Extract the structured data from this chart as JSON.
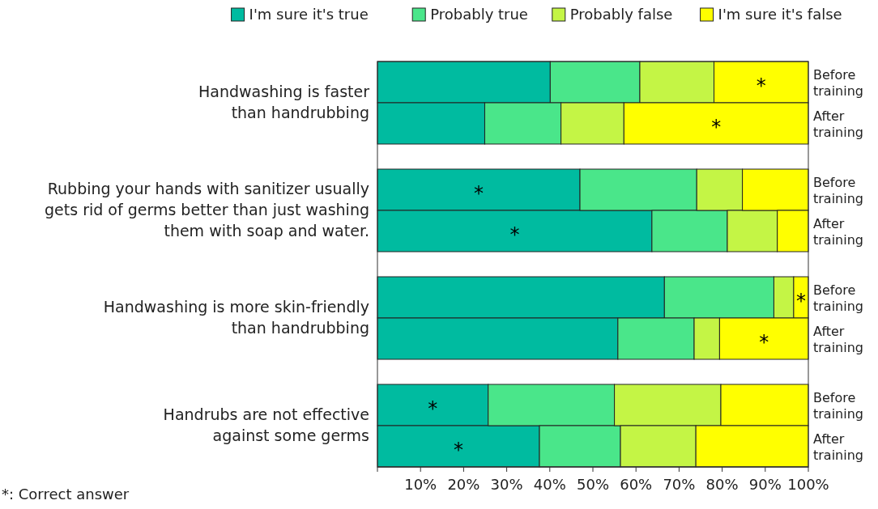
{
  "chart_data": {
    "type": "bar",
    "orientation": "horizontal",
    "stacked": true,
    "legend": "top",
    "grid": false,
    "categories": [
      "Before training",
      "After training",
      "Before training",
      "After training",
      "Before training",
      "After training",
      "Before training",
      "After training"
    ],
    "series": [
      {
        "name": "I'm sure it's true",
        "color": "#00bba0",
        "values": [
          40.1,
          24.9,
          47.0,
          63.7,
          66.6,
          55.8,
          25.7,
          37.6
        ],
        "value_labels": [
          null,
          null,
          "*",
          "*",
          null,
          null,
          "*",
          "*"
        ]
      },
      {
        "name": "Probably true",
        "color": "#4ae68a",
        "values": [
          20.8,
          17.7,
          27.1,
          17.5,
          25.4,
          17.7,
          29.3,
          18.8
        ]
      },
      {
        "name": "Probably false",
        "color": "#c4f545",
        "values": [
          17.2,
          14.6,
          10.6,
          11.6,
          4.6,
          5.9,
          24.7,
          17.5
        ]
      },
      {
        "name": "I'm sure it's false",
        "color": "#ffff00",
        "values": [
          21.9,
          42.8,
          15.3,
          7.2,
          3.4,
          20.6,
          20.3,
          26.1
        ],
        "value_labels": [
          "*",
          "*",
          null,
          null,
          "*",
          "*",
          null,
          null
        ]
      }
    ],
    "xlim": [
      0,
      100
    ],
    "xticks": [
      {
        "value": 0,
        "label": null
      },
      {
        "value": 10,
        "label": "10%"
      },
      {
        "value": 20,
        "label": "20%"
      },
      {
        "value": 30,
        "label": "30%"
      },
      {
        "value": 40,
        "label": "40%"
      },
      {
        "value": 50,
        "label": "50%"
      },
      {
        "value": 60,
        "label": "60%"
      },
      {
        "value": 70,
        "label": "70%"
      },
      {
        "value": 80,
        "label": "80%"
      },
      {
        "value": 90,
        "label": "90%"
      },
      {
        "value": 100,
        "label": "100%"
      }
    ],
    "annotations": [
      "Handwashing is faster\nthan handrubbing",
      "Rubbing your hands with sanitizer usually\ngets rid of germs better than just washing\nthem with soap and water.",
      "Handwashing is more skin-friendly\nthan handrubbing",
      "Handrubs are not effective\nagainst some germs",
      "*: Correct answer"
    ]
  }
}
